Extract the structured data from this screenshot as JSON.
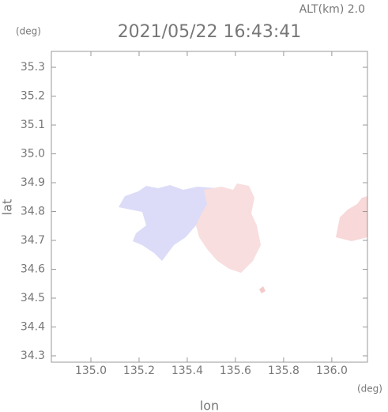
{
  "chart_data": {
    "type": "map",
    "title": "2021/05/22 16:43:41",
    "subtitle": "ALT(km) 2.0",
    "x_label": "lon",
    "y_label": "lat",
    "x_unit": "(deg)",
    "y_unit": "(deg)",
    "xlim": [
      134.836,
      136.148
    ],
    "ylim": [
      34.278,
      35.355
    ],
    "xticks": [
      {
        "value": 135.0,
        "label": "135.0"
      },
      135.2,
      135.4,
      135.6,
      135.8,
      {
        "value": 136.0,
        "label": "136.0"
      }
    ],
    "yticks": [
      34.3,
      34.4,
      34.5,
      34.6,
      34.7,
      34.8,
      34.9,
      {
        "value": 35.0,
        "label": "35.0"
      },
      35.1,
      35.2,
      35.3
    ]
  }
}
